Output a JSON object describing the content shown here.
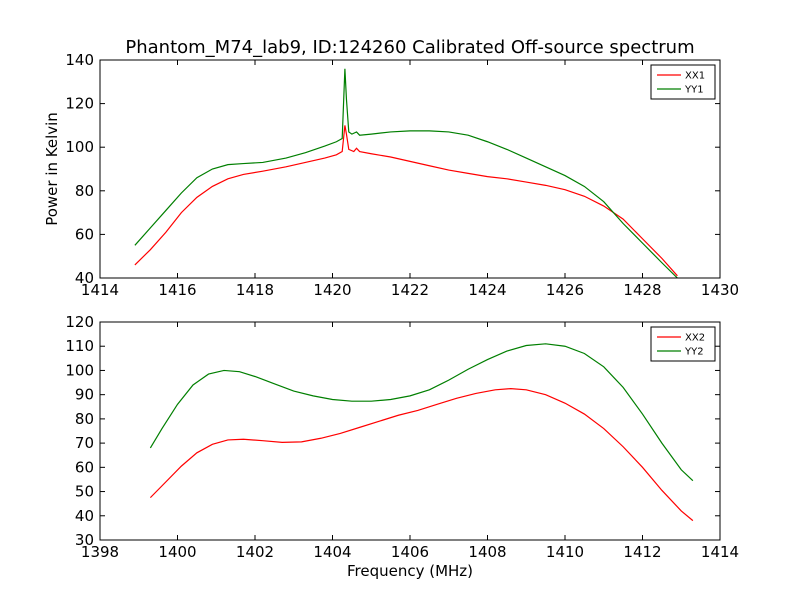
{
  "title": "Phantom_M74_lab9, ID:124260 Calibrated Off-source spectrum",
  "ylabel": "Power in Kelvin",
  "xlabel": "Frequency (MHz)",
  "colors": {
    "red": "#ff0000",
    "green": "#007f00",
    "axes": "#000000"
  },
  "chart_data": [
    {
      "type": "line",
      "xlim": [
        1414,
        1430
      ],
      "ylim": [
        40,
        140
      ],
      "xticks": [
        1414,
        1416,
        1418,
        1420,
        1422,
        1424,
        1426,
        1428,
        1430
      ],
      "yticks": [
        40,
        60,
        80,
        100,
        120,
        140
      ],
      "legend_position": "top-right",
      "series": [
        {
          "name": "XX1",
          "color": "#ff0000",
          "points": [
            [
              1414.9,
              46
            ],
            [
              1415.3,
              53
            ],
            [
              1415.7,
              61
            ],
            [
              1416.1,
              70
            ],
            [
              1416.5,
              77
            ],
            [
              1416.9,
              82
            ],
            [
              1417.3,
              85.5
            ],
            [
              1417.7,
              87.5
            ],
            [
              1418.2,
              89
            ],
            [
              1418.8,
              91
            ],
            [
              1419.3,
              93
            ],
            [
              1419.8,
              95
            ],
            [
              1420.1,
              96.5
            ],
            [
              1420.25,
              98
            ],
            [
              1420.32,
              110
            ],
            [
              1420.36,
              106
            ],
            [
              1420.42,
              99
            ],
            [
              1420.55,
              98
            ],
            [
              1420.62,
              99.5
            ],
            [
              1420.7,
              98
            ],
            [
              1421.0,
              97
            ],
            [
              1421.5,
              95.5
            ],
            [
              1422.0,
              93.5
            ],
            [
              1422.5,
              91.5
            ],
            [
              1423.0,
              89.5
            ],
            [
              1423.5,
              88
            ],
            [
              1424.0,
              86.5
            ],
            [
              1424.5,
              85.5
            ],
            [
              1425.0,
              84
            ],
            [
              1425.5,
              82.5
            ],
            [
              1426.0,
              80.5
            ],
            [
              1426.5,
              77.5
            ],
            [
              1427.0,
              73
            ],
            [
              1427.5,
              67
            ],
            [
              1428.0,
              58
            ],
            [
              1428.5,
              49
            ],
            [
              1428.9,
              41
            ]
          ]
        },
        {
          "name": "YY1",
          "color": "#007f00",
          "points": [
            [
              1414.9,
              55
            ],
            [
              1415.3,
              63
            ],
            [
              1415.7,
              71
            ],
            [
              1416.1,
              79
            ],
            [
              1416.5,
              86
            ],
            [
              1416.9,
              90
            ],
            [
              1417.3,
              92
            ],
            [
              1417.7,
              92.5
            ],
            [
              1418.2,
              93
            ],
            [
              1418.8,
              95
            ],
            [
              1419.3,
              97.5
            ],
            [
              1419.8,
              100.5
            ],
            [
              1420.1,
              102.5
            ],
            [
              1420.25,
              104
            ],
            [
              1420.32,
              136
            ],
            [
              1420.36,
              122
            ],
            [
              1420.42,
              107
            ],
            [
              1420.5,
              106
            ],
            [
              1420.62,
              107
            ],
            [
              1420.7,
              105.5
            ],
            [
              1421.0,
              106
            ],
            [
              1421.5,
              107
            ],
            [
              1422.0,
              107.5
            ],
            [
              1422.5,
              107.5
            ],
            [
              1423.0,
              107
            ],
            [
              1423.5,
              105.5
            ],
            [
              1424.0,
              102.5
            ],
            [
              1424.5,
              99
            ],
            [
              1425.0,
              95
            ],
            [
              1425.5,
              91
            ],
            [
              1426.0,
              87
            ],
            [
              1426.5,
              82
            ],
            [
              1427.0,
              75
            ],
            [
              1427.5,
              65
            ],
            [
              1428.0,
              56
            ],
            [
              1428.5,
              47
            ],
            [
              1428.9,
              40
            ]
          ]
        }
      ]
    },
    {
      "type": "line",
      "xlim": [
        1398,
        1414
      ],
      "ylim": [
        30,
        120
      ],
      "xticks": [
        1398,
        1400,
        1402,
        1404,
        1406,
        1408,
        1410,
        1412,
        1414
      ],
      "yticks": [
        30,
        40,
        50,
        60,
        70,
        80,
        90,
        100,
        110,
        120
      ],
      "legend_position": "top-right",
      "series": [
        {
          "name": "XX2",
          "color": "#ff0000",
          "points": [
            [
              1399.3,
              47.5
            ],
            [
              1399.7,
              54
            ],
            [
              1400.1,
              60.5
            ],
            [
              1400.5,
              66
            ],
            [
              1400.9,
              69.5
            ],
            [
              1401.3,
              71.3
            ],
            [
              1401.7,
              71.6
            ],
            [
              1402.2,
              71
            ],
            [
              1402.7,
              70.3
            ],
            [
              1403.2,
              70.5
            ],
            [
              1403.7,
              72
            ],
            [
              1404.2,
              74
            ],
            [
              1404.7,
              76.5
            ],
            [
              1405.2,
              79
            ],
            [
              1405.7,
              81.5
            ],
            [
              1406.2,
              83.5
            ],
            [
              1406.7,
              86
            ],
            [
              1407.2,
              88.5
            ],
            [
              1407.7,
              90.5
            ],
            [
              1408.2,
              92
            ],
            [
              1408.6,
              92.5
            ],
            [
              1409.0,
              92
            ],
            [
              1409.5,
              90
            ],
            [
              1410.0,
              86.5
            ],
            [
              1410.5,
              82
            ],
            [
              1411.0,
              76
            ],
            [
              1411.5,
              68.5
            ],
            [
              1412.0,
              60
            ],
            [
              1412.5,
              50.5
            ],
            [
              1413.0,
              42
            ],
            [
              1413.3,
              38
            ]
          ]
        },
        {
          "name": "YY2",
          "color": "#007f00",
          "points": [
            [
              1399.3,
              68
            ],
            [
              1399.6,
              76
            ],
            [
              1400.0,
              86
            ],
            [
              1400.4,
              94
            ],
            [
              1400.8,
              98.5
            ],
            [
              1401.2,
              100
            ],
            [
              1401.6,
              99.5
            ],
            [
              1402.0,
              97.5
            ],
            [
              1402.5,
              94.5
            ],
            [
              1403.0,
              91.5
            ],
            [
              1403.5,
              89.5
            ],
            [
              1404.0,
              88
            ],
            [
              1404.5,
              87.3
            ],
            [
              1405.0,
              87.3
            ],
            [
              1405.5,
              88
            ],
            [
              1406.0,
              89.5
            ],
            [
              1406.5,
              92
            ],
            [
              1407.0,
              96
            ],
            [
              1407.5,
              100.5
            ],
            [
              1408.0,
              104.5
            ],
            [
              1408.5,
              108
            ],
            [
              1409.0,
              110.3
            ],
            [
              1409.5,
              111
            ],
            [
              1410.0,
              110
            ],
            [
              1410.5,
              107
            ],
            [
              1411.0,
              101.5
            ],
            [
              1411.5,
              93
            ],
            [
              1412.0,
              82
            ],
            [
              1412.5,
              70
            ],
            [
              1413.0,
              59
            ],
            [
              1413.3,
              54.5
            ]
          ]
        }
      ]
    }
  ]
}
